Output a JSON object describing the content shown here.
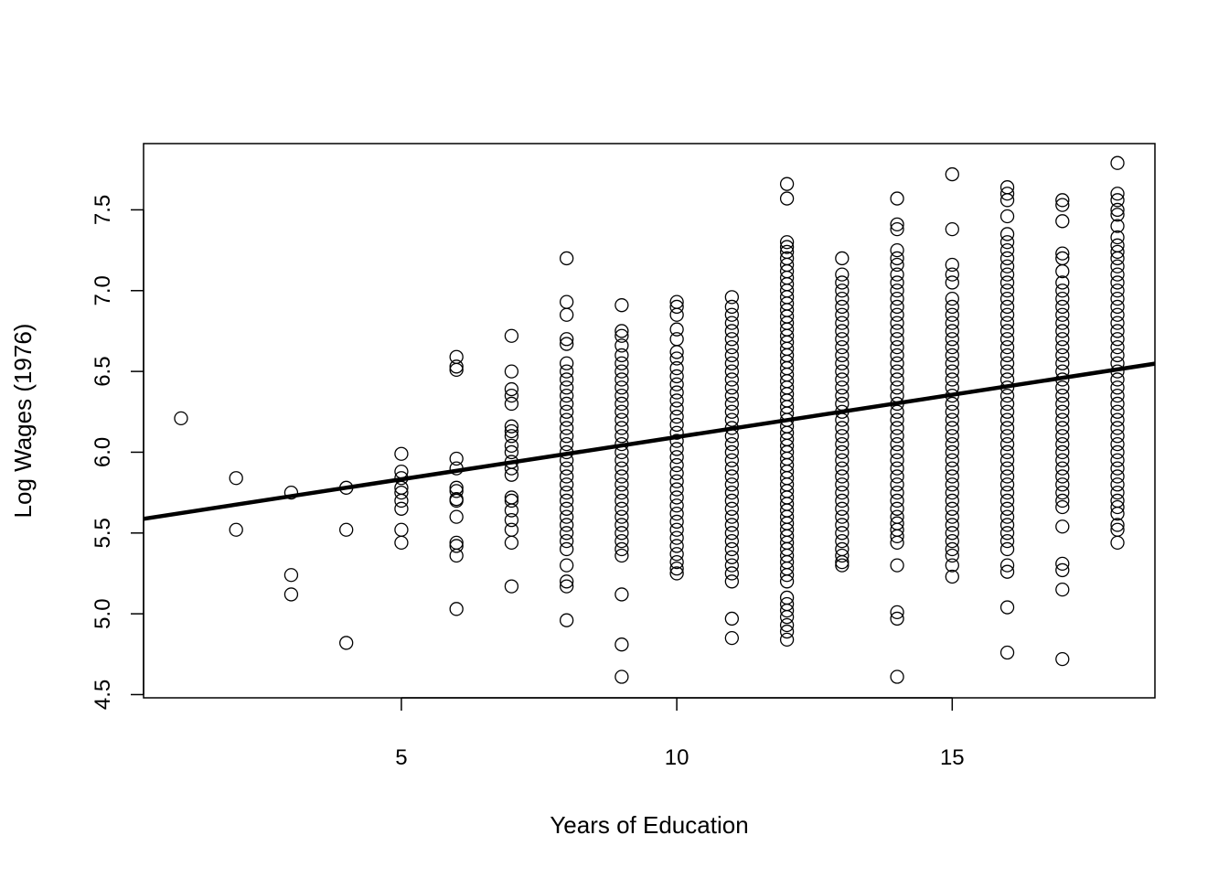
{
  "chart_data": {
    "type": "scatter",
    "title": "",
    "xlabel": "Years of Education",
    "ylabel": "Log Wages (1976)",
    "xlim": [
      0.32,
      18.68
    ],
    "ylim": [
      4.48,
      7.91
    ],
    "xticks": [
      "5",
      "10",
      "15"
    ],
    "yticks": [
      "4.5",
      "5.0",
      "5.5",
      "6.0",
      "6.5",
      "7.0",
      "7.5"
    ],
    "grid": false,
    "marker": "open-circle",
    "regression_line": {
      "intercept": 5.571,
      "slope": 0.0523
    },
    "points": [
      {
        "x": 1,
        "y": [
          6.21
        ]
      },
      {
        "x": 2,
        "y": [
          5.84,
          5.52
        ]
      },
      {
        "x": 3,
        "y": [
          5.75,
          5.24,
          5.12
        ]
      },
      {
        "x": 4,
        "y": [
          5.78,
          5.52,
          4.82
        ]
      },
      {
        "x": 5,
        "y": [
          5.99,
          5.88,
          5.84,
          5.78,
          5.75,
          5.7,
          5.65,
          5.52,
          5.44
        ]
      },
      {
        "x": 6,
        "y": [
          6.59,
          6.53,
          6.51,
          5.96,
          5.9,
          5.78,
          5.76,
          5.71,
          5.7,
          5.6,
          5.44,
          5.42,
          5.36,
          5.03
        ]
      },
      {
        "x": 7,
        "y": [
          6.72,
          6.5,
          6.39,
          6.35,
          6.3,
          6.16,
          6.13,
          6.1,
          6.04,
          6.0,
          5.94,
          5.9,
          5.86,
          5.72,
          5.7,
          5.64,
          5.58,
          5.52,
          5.44,
          5.17
        ]
      },
      {
        "x": 8,
        "y": [
          7.2,
          6.93,
          6.85,
          6.7,
          6.67,
          6.55,
          6.5,
          6.45,
          6.4,
          6.35,
          6.3,
          6.25,
          6.2,
          6.15,
          6.1,
          6.05,
          6.0,
          5.95,
          5.9,
          5.85,
          5.8,
          5.75,
          5.7,
          5.65,
          5.6,
          5.55,
          5.5,
          5.45,
          5.4,
          5.3,
          5.2,
          5.17,
          4.96
        ]
      },
      {
        "x": 9,
        "y": [
          6.91,
          6.75,
          6.72,
          6.66,
          6.6,
          6.55,
          6.5,
          6.45,
          6.4,
          6.35,
          6.3,
          6.25,
          6.2,
          6.15,
          6.1,
          6.05,
          6.0,
          5.95,
          5.9,
          5.85,
          5.8,
          5.75,
          5.7,
          5.65,
          5.6,
          5.55,
          5.5,
          5.45,
          5.4,
          5.36,
          5.12,
          4.81,
          4.61
        ]
      },
      {
        "x": 10,
        "y": [
          6.93,
          6.9,
          6.85,
          6.76,
          6.7,
          6.62,
          6.58,
          6.52,
          6.47,
          6.42,
          6.37,
          6.32,
          6.27,
          6.22,
          6.17,
          6.12,
          6.07,
          6.02,
          5.97,
          5.92,
          5.87,
          5.82,
          5.77,
          5.72,
          5.67,
          5.62,
          5.57,
          5.52,
          5.47,
          5.42,
          5.37,
          5.32,
          5.28,
          5.25
        ]
      },
      {
        "x": 11,
        "y": [
          6.96,
          6.9,
          6.85,
          6.8,
          6.75,
          6.7,
          6.65,
          6.6,
          6.55,
          6.5,
          6.45,
          6.4,
          6.35,
          6.3,
          6.25,
          6.2,
          6.15,
          6.1,
          6.05,
          6.0,
          5.95,
          5.9,
          5.85,
          5.8,
          5.75,
          5.7,
          5.65,
          5.6,
          5.55,
          5.5,
          5.45,
          5.4,
          5.35,
          5.3,
          5.25,
          5.2,
          4.97,
          4.85
        ]
      },
      {
        "x": 12,
        "y": [
          7.66,
          7.57,
          7.3,
          7.27,
          7.24,
          7.2,
          7.16,
          7.12,
          7.08,
          7.04,
          7.0,
          6.96,
          6.92,
          6.88,
          6.84,
          6.8,
          6.76,
          6.72,
          6.68,
          6.64,
          6.6,
          6.56,
          6.52,
          6.48,
          6.44,
          6.4,
          6.36,
          6.32,
          6.28,
          6.24,
          6.2,
          6.16,
          6.12,
          6.08,
          6.04,
          6.0,
          5.96,
          5.92,
          5.88,
          5.84,
          5.8,
          5.76,
          5.72,
          5.68,
          5.64,
          5.6,
          5.56,
          5.52,
          5.48,
          5.44,
          5.4,
          5.36,
          5.32,
          5.28,
          5.24,
          5.2,
          5.1,
          5.06,
          5.02,
          4.98,
          4.93,
          4.89,
          4.84
        ]
      },
      {
        "x": 13,
        "y": [
          7.2,
          7.1,
          7.05,
          7.0,
          6.95,
          6.9,
          6.85,
          6.8,
          6.75,
          6.7,
          6.65,
          6.6,
          6.55,
          6.5,
          6.45,
          6.4,
          6.35,
          6.3,
          6.25,
          6.2,
          6.15,
          6.1,
          6.05,
          6.0,
          5.95,
          5.9,
          5.85,
          5.8,
          5.75,
          5.7,
          5.65,
          5.6,
          5.55,
          5.5,
          5.45,
          5.4,
          5.36,
          5.32,
          5.3
        ]
      },
      {
        "x": 14,
        "y": [
          7.57,
          7.41,
          7.38,
          7.25,
          7.2,
          7.16,
          7.1,
          7.05,
          7.0,
          6.95,
          6.9,
          6.85,
          6.8,
          6.75,
          6.7,
          6.65,
          6.6,
          6.55,
          6.5,
          6.45,
          6.4,
          6.35,
          6.3,
          6.25,
          6.2,
          6.15,
          6.1,
          6.05,
          6.0,
          5.95,
          5.9,
          5.85,
          5.8,
          5.75,
          5.7,
          5.65,
          5.6,
          5.56,
          5.52,
          5.48,
          5.44,
          5.3,
          5.01,
          4.97,
          4.61
        ]
      },
      {
        "x": 15,
        "y": [
          7.72,
          7.38,
          7.16,
          7.1,
          7.05,
          6.95,
          6.9,
          6.85,
          6.8,
          6.75,
          6.7,
          6.65,
          6.6,
          6.55,
          6.5,
          6.45,
          6.4,
          6.35,
          6.3,
          6.25,
          6.2,
          6.15,
          6.1,
          6.05,
          6.0,
          5.95,
          5.9,
          5.85,
          5.8,
          5.75,
          5.7,
          5.65,
          5.6,
          5.55,
          5.5,
          5.45,
          5.4,
          5.36,
          5.3,
          5.23
        ]
      },
      {
        "x": 16,
        "y": [
          7.64,
          7.6,
          7.56,
          7.46,
          7.35,
          7.3,
          7.25,
          7.2,
          7.15,
          7.1,
          7.05,
          7.0,
          6.95,
          6.9,
          6.85,
          6.8,
          6.75,
          6.7,
          6.65,
          6.6,
          6.55,
          6.5,
          6.45,
          6.4,
          6.35,
          6.3,
          6.25,
          6.2,
          6.15,
          6.1,
          6.05,
          6.0,
          5.95,
          5.9,
          5.85,
          5.8,
          5.75,
          5.7,
          5.65,
          5.6,
          5.55,
          5.5,
          5.45,
          5.4,
          5.3,
          5.26,
          5.04,
          4.76
        ]
      },
      {
        "x": 17,
        "y": [
          7.56,
          7.53,
          7.43,
          7.23,
          7.2,
          7.12,
          7.05,
          7.0,
          6.95,
          6.9,
          6.85,
          6.8,
          6.75,
          6.7,
          6.65,
          6.6,
          6.55,
          6.5,
          6.45,
          6.4,
          6.35,
          6.3,
          6.25,
          6.2,
          6.15,
          6.1,
          6.05,
          6.0,
          5.95,
          5.9,
          5.85,
          5.8,
          5.75,
          5.7,
          5.66,
          5.54,
          5.31,
          5.27,
          5.15,
          4.72
        ]
      },
      {
        "x": 18,
        "y": [
          7.79,
          7.6,
          7.56,
          7.5,
          7.47,
          7.4,
          7.33,
          7.28,
          7.24,
          7.2,
          7.15,
          7.1,
          7.05,
          7.0,
          6.95,
          6.9,
          6.85,
          6.8,
          6.75,
          6.7,
          6.65,
          6.6,
          6.55,
          6.5,
          6.45,
          6.4,
          6.35,
          6.3,
          6.25,
          6.2,
          6.15,
          6.1,
          6.05,
          6.0,
          5.95,
          5.9,
          5.85,
          5.8,
          5.75,
          5.7,
          5.66,
          5.62,
          5.55,
          5.52,
          5.44
        ]
      }
    ]
  }
}
